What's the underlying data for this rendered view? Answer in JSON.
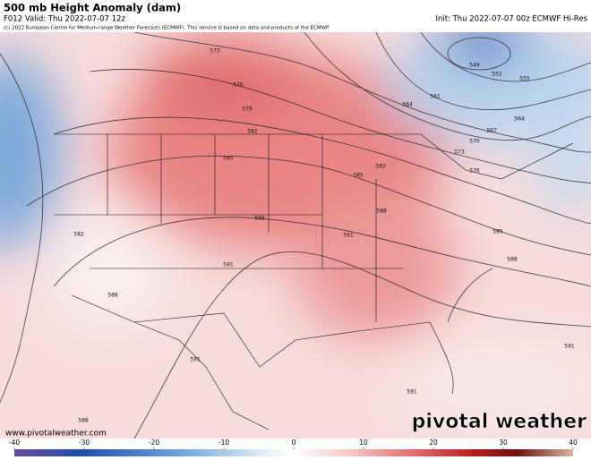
{
  "header": {
    "title": "500 mb Height Anomaly (dam)",
    "valid": "F012 Valid: Thu 2022-07-07 12z",
    "init": "Init: Thu 2022-07-07 00z ECMWF Hi-Res",
    "copyright": "(c) 2022 European Centre for Medium-range Weather Forecasts (ECMWF). This service is based on data and products of the ECMWF."
  },
  "footer": {
    "url": "www.pivotalweather.com",
    "brand": "pivotal weather"
  },
  "contour_labels": [
    "573",
    "576",
    "579",
    "582",
    "585",
    "588",
    "591",
    "582",
    "588",
    "591",
    "591",
    "591",
    "588",
    "549",
    "552",
    "555",
    "561",
    "564",
    "567",
    "564",
    "570",
    "573",
    "576",
    "582",
    "585",
    "588",
    "591",
    "585",
    "588"
  ],
  "colorbar": {
    "range": [
      -40,
      40
    ],
    "ticks": [
      -40,
      -30,
      -20,
      -10,
      0,
      10,
      20,
      30,
      40
    ]
  }
}
